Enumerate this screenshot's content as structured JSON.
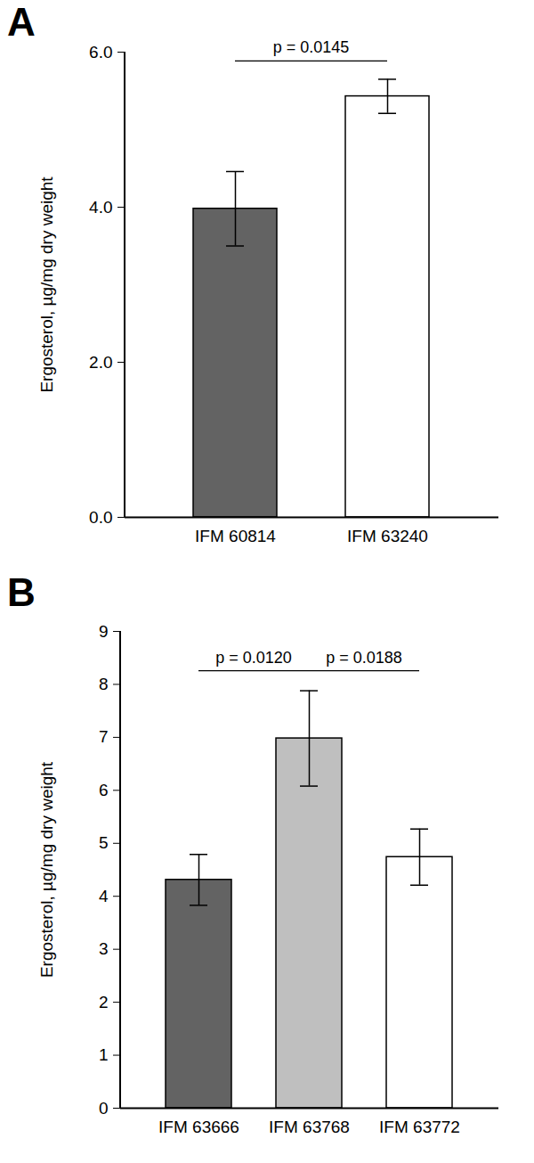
{
  "chart_data": [
    {
      "type": "bar",
      "title": "A",
      "y_label": "Ergosterol, µg/mg dry weight",
      "categories": [
        "IFM 60814",
        "IFM 63240"
      ],
      "values": [
        3.98,
        5.43
      ],
      "errors": [
        0.48,
        0.22
      ],
      "colors": [
        "#636363",
        "#ffffff"
      ],
      "ylim": [
        0,
        6
      ],
      "yticks": [
        0,
        2,
        4,
        6
      ],
      "annotations": [
        {
          "text": "p = 0.0145",
          "from": "IFM 60814",
          "to": "IFM 63240",
          "y": 5.88
        }
      ]
    },
    {
      "type": "bar",
      "title": "B",
      "y_label": "Ergosterol, µg/mg dry weight",
      "categories": [
        "IFM 63666",
        "IFM 63768",
        "IFM 63772"
      ],
      "values": [
        4.31,
        6.98,
        4.74
      ],
      "errors": [
        0.48,
        0.9,
        0.53
      ],
      "colors": [
        "#636363",
        "#bfbfbf",
        "#ffffff"
      ],
      "ylim": [
        0,
        9
      ],
      "yticks": [
        0,
        1,
        2,
        3,
        4,
        5,
        6,
        7,
        8,
        9
      ],
      "annotations": [
        {
          "text": "p = 0.0120",
          "from": "IFM 63666",
          "to": "IFM 63768",
          "y": 8.25
        },
        {
          "text": "p = 0.0188",
          "from": "IFM 63768",
          "to": "IFM 63772",
          "y": 8.25
        }
      ]
    }
  ]
}
